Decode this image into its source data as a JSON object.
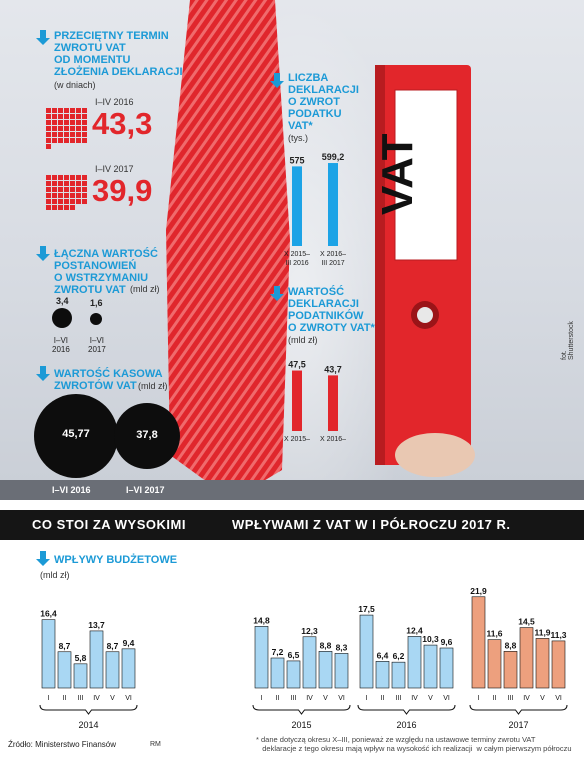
{
  "section_avg_term": {
    "title": "PRZECIĘTNY TERMIN\nZWROTU VAT\nOD MOMENTU\nZŁOŻENIA DEKLARACJI",
    "unit": "(w dniach)",
    "items": [
      {
        "label": "I–IV 2016",
        "value": "43,3",
        "squares": 43
      },
      {
        "label": "I–IV 2017",
        "value": "39,9",
        "squares": 40
      }
    ]
  },
  "section_withheld": {
    "title": "ŁĄCZNA WARTOŚĆ\nPOSTANOWIEŃ\nO WSTRZYMANIU\nZWROTU VAT",
    "unit": "(mld zł)",
    "items": [
      {
        "label": "I–VI\n2016",
        "value": "3,4",
        "num": 3.4
      },
      {
        "label": "I–VI\n2017",
        "value": "1,6",
        "num": 1.6
      }
    ]
  },
  "section_cash": {
    "title": "WARTOŚĆ KASOWA\nZWROTÓW VAT",
    "unit": "(mld zł)",
    "items": [
      {
        "label": "I–VI 2016",
        "value": "45,77",
        "num": 45.77
      },
      {
        "label": "I–VI 2017",
        "value": "37,8",
        "num": 37.8
      }
    ]
  },
  "section_declarations": {
    "title": "LICZBA\nDEKLARACJI\nO ZWROT\nPODATKU\nVAT*",
    "unit": "(tys.)",
    "color": "#1ca3e6"
  },
  "section_value_decl": {
    "title": "WARTOŚĆ\nDEKLARACJI\nPODATNIKÓW\nO ZWROTY VAT*",
    "unit": "(mld zł)",
    "color": "#e2262b"
  },
  "binder": {
    "label": "VAT",
    "color": "#e2262b"
  },
  "banner": {
    "left": "CO STOI ZA WYSOKIMI",
    "right": "WPŁYWAMI Z VAT W I PÓŁROCZU 2017 R."
  },
  "section_budget": {
    "title": "WPŁYWY BUDŻETOWE",
    "unit": "(mld zł)"
  },
  "photo_credit": "fot. Shutterstock",
  "source": "Źródło: Ministerstwo Finansów",
  "source_tag": "RM",
  "footnote": "* dane dotyczą okresu X–III, ponieważ ze względu na ustawowe terminy zwrotu VAT\n   deklaracje z tego okresu mają wpływ na wysokość ich realizacji  w całym pierwszym półroczu",
  "chart_data": [
    {
      "type": "bar",
      "categories": [
        "X 2015–\nIII 2016",
        "X 2016–\nIII 2017"
      ],
      "values": [
        575,
        599.2
      ],
      "value_labels": [
        "575",
        "599,2"
      ],
      "title": "LICZBA DEKLARACJI O ZWROT PODATKU VAT*",
      "ylabel": "(tys.)",
      "ylim": [
        0,
        650
      ]
    },
    {
      "type": "bar",
      "categories": [
        "X 2015–\nIII 2016",
        "X 2016–\nIII 2017"
      ],
      "values": [
        47.5,
        43.7
      ],
      "value_labels": [
        "47,5",
        "43,7"
      ],
      "title": "WARTOŚĆ DEKLARACJI PODATNIKÓW O ZWROTY VAT*",
      "ylabel": "(mld zł)",
      "ylim": [
        0,
        55
      ]
    },
    {
      "type": "bar",
      "title": "WPŁYWY BUDŻETOWE",
      "ylabel": "(mld zł)",
      "categories": [
        "I",
        "II",
        "III",
        "IV",
        "V",
        "VI"
      ],
      "ylim": [
        0,
        24
      ],
      "series": [
        {
          "name": "2014",
          "values": [
            16.4,
            8.7,
            5.8,
            13.7,
            8.7,
            9.4
          ],
          "value_labels": [
            "16,4",
            "8,7",
            "5,8",
            "13,7",
            "8,7",
            "9,4"
          ],
          "color": "#a9d7f3"
        },
        {
          "name": "2015",
          "values": [
            14.8,
            7.2,
            6.5,
            12.3,
            8.8,
            8.3
          ],
          "value_labels": [
            "14,8",
            "7,2",
            "6,5",
            "12,3",
            "8,8",
            "8,3"
          ],
          "color": "#a9d7f3"
        },
        {
          "name": "2016",
          "values": [
            17.5,
            6.4,
            6.2,
            12.4,
            10.3,
            9.6
          ],
          "value_labels": [
            "17,5",
            "6,4",
            "6,2",
            "12,4",
            "10,3",
            "9,6"
          ],
          "color": "#a9d7f3"
        },
        {
          "name": "2017",
          "values": [
            21.9,
            11.6,
            8.8,
            14.5,
            11.9,
            11.3
          ],
          "value_labels": [
            "21,9",
            "11,6",
            "8,8",
            "14,5",
            "11,9",
            "11,3"
          ],
          "color": "#eda07e"
        }
      ]
    }
  ]
}
